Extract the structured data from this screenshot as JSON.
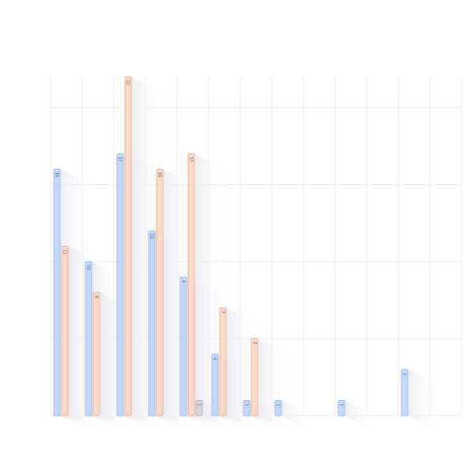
{
  "chart_data": {
    "type": "bar",
    "title": "",
    "xlabel": "",
    "ylabel": "",
    "categories": [
      "",
      "",
      "",
      "",
      "",
      "",
      "",
      "",
      "",
      "",
      "",
      "",
      ""
    ],
    "ylim": [
      0,
      22
    ],
    "grid": true,
    "series": [
      {
        "color": "#c3d8fb",
        "stroke": "#8fb3ee",
        "values": [
          16,
          10,
          17,
          12,
          9,
          4,
          1,
          1,
          null,
          1,
          null,
          3,
          null
        ]
      },
      {
        "color": "#fbd9c6",
        "stroke": "#eaa98a",
        "values": [
          11,
          8,
          22,
          16,
          17,
          7,
          5,
          null,
          null,
          null,
          null,
          null,
          null
        ]
      },
      {
        "color": "#d7d7dc",
        "stroke": "#a8a8b0",
        "values": [
          null,
          null,
          null,
          null,
          1,
          null,
          null,
          null,
          null,
          null,
          null,
          null,
          null
        ]
      }
    ]
  }
}
